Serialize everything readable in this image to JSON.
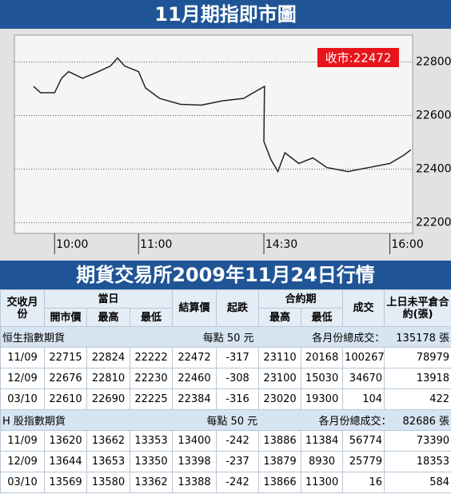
{
  "chart_data": {
    "type": "line",
    "title": "11月期指即市圖",
    "x": [
      "9:45",
      "9:50",
      "10:00",
      "10:05",
      "10:10",
      "10:20",
      "10:30",
      "10:40",
      "10:45",
      "10:50",
      "11:00",
      "11:05",
      "11:15",
      "11:30",
      "11:45",
      "12:00",
      "12:15",
      "12:25",
      "12:30",
      "14:30",
      "14:35",
      "14:40",
      "14:45",
      "14:55",
      "15:05",
      "15:15",
      "15:30",
      "15:45",
      "16:00",
      "16:10",
      "16:15"
    ],
    "values": [
      22709,
      22685,
      22685,
      22739,
      22764,
      22739,
      22761,
      22785,
      22815,
      22785,
      22764,
      22703,
      22664,
      22642,
      22639,
      22655,
      22664,
      22694,
      22709,
      22503,
      22436,
      22391,
      22461,
      22421,
      22442,
      22406,
      22391,
      22406,
      22421,
      22452,
      22472
    ],
    "color": "#222222",
    "ylim": [
      22160,
      22900
    ],
    "yticks": [
      22200,
      22400,
      22600,
      22800
    ],
    "xticks": [
      "10:00",
      "11:00",
      "14:30",
      "16:00"
    ],
    "grid": true,
    "annotation": "收市:22472"
  },
  "table": {
    "title": "期貨交易所2009年11月24日行情",
    "header": {
      "month": "交收月份",
      "today": "當日",
      "open": "開市價",
      "high": "最高",
      "low": "最低",
      "settle": "結算價",
      "change": "起跌",
      "contract": "合約期",
      "c_high": "最高",
      "c_low": "最低",
      "volume": "成交",
      "oi": "上日未平倉合約(張)"
    },
    "sections": [
      {
        "name": "恒生指數期貨",
        "unit": "每點 50 元",
        "total_label": "各月份總成交：",
        "total": "135178 張",
        "rows": [
          [
            "11/09",
            "22715",
            "22824",
            "22222",
            "22472",
            "-317",
            "23110",
            "20168",
            "100267",
            "78979"
          ],
          [
            "12/09",
            "22676",
            "22810",
            "22230",
            "22460",
            "-308",
            "23100",
            "15030",
            "34670",
            "13918"
          ],
          [
            "03/10",
            "22610",
            "22690",
            "22225",
            "22384",
            "-316",
            "23020",
            "19300",
            "104",
            "422"
          ]
        ]
      },
      {
        "name": "H 股指數期貨",
        "unit": "每點 50 元",
        "total_label": "各月份總成交：",
        "total": "82686 張",
        "rows": [
          [
            "11/09",
            "13620",
            "13662",
            "13353",
            "13400",
            "-242",
            "13886",
            "11384",
            "56774",
            "73390"
          ],
          [
            "12/09",
            "13644",
            "13653",
            "13350",
            "13398",
            "-237",
            "13879",
            "8930",
            "25779",
            "18353"
          ],
          [
            "03/10",
            "13569",
            "13580",
            "13362",
            "13388",
            "-242",
            "13866",
            "11300",
            "16",
            "584"
          ]
        ]
      }
    ]
  }
}
